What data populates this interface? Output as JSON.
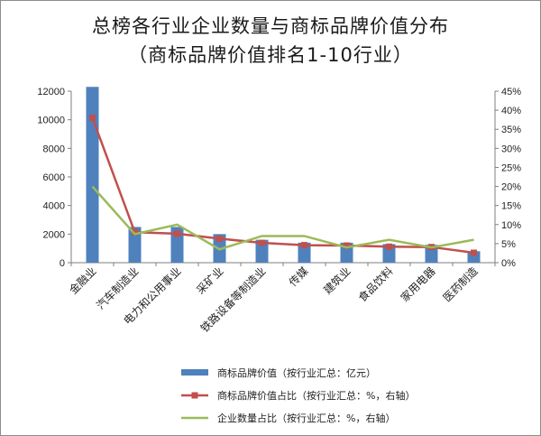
{
  "chart_data": {
    "type": "bar",
    "title": "总榜各行业企业数量与商标品牌价值分布",
    "subtitle": "（商标品牌价值排名1-10行业）",
    "categories": [
      "金融业",
      "汽车制造业",
      "电力和公用事业",
      "采矿业",
      "铁路设备等制造业",
      "传媒",
      "建筑业",
      "食品饮料",
      "家用电器",
      "医药制造"
    ],
    "left_axis": {
      "min": 0,
      "max": 12000,
      "ticks": [
        "0",
        "2000",
        "4000",
        "6000",
        "8000",
        "10000",
        "12000"
      ]
    },
    "right_axis": {
      "min": 0,
      "max": 45,
      "ticks": [
        "0%",
        "5%",
        "10%",
        "15%",
        "20%",
        "25%",
        "30%",
        "35%",
        "40%",
        "45%"
      ]
    },
    "series": [
      {
        "name": "商标品牌价值（按行业汇总：亿元）",
        "kind": "bar",
        "axis": "left",
        "color": "#4f81bd",
        "values": [
          12300,
          2500,
          2500,
          2000,
          1600,
          1400,
          1400,
          1300,
          1250,
          800
        ]
      },
      {
        "name": "商标品牌价值占比（按行业汇总：%，右轴）",
        "kind": "line",
        "axis": "right",
        "color": "#c0504d",
        "values": [
          38,
          8,
          7.6,
          6.3,
          5.2,
          4.6,
          4.5,
          4.2,
          4.1,
          2.6
        ]
      },
      {
        "name": "企业数量占比（按行业汇总：%，右轴）",
        "kind": "line",
        "axis": "right",
        "color": "#9bbb59",
        "values": [
          20,
          7.5,
          10,
          3.5,
          7,
          7,
          4,
          6,
          4,
          6
        ]
      }
    ],
    "grid": false,
    "legend_position": "bottom"
  }
}
